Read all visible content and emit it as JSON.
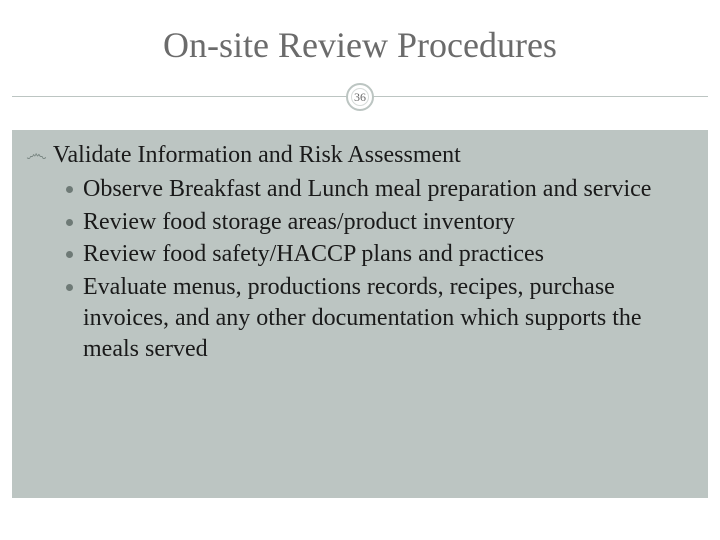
{
  "slide": {
    "title": "On-site Review Procedures",
    "page_number": "36",
    "main_bullet_glyph": "෴",
    "main_text": "Validate Information and Risk Assessment",
    "sub_items": [
      "Observe Breakfast and Lunch meal preparation and service",
      "Review food storage areas/product inventory",
      "Review food safety/HACCP plans and practices",
      "Evaluate menus, productions records, recipes, purchase invoices, and any other documentation which supports the meals served"
    ]
  },
  "style": {
    "title_color": "#6b6b6b",
    "title_fontsize": 36,
    "body_fontsize": 24,
    "accent_color": "#bcc5c2",
    "sub_bullet_color": "#6e7a76",
    "background_color": "#ffffff",
    "content_bg_color": "#bcc5c2",
    "text_color": "#1a1a1a"
  }
}
